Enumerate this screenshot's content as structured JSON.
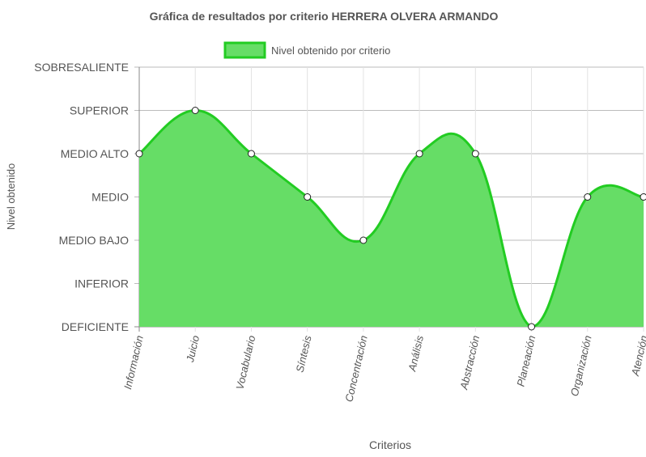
{
  "chart_data": {
    "type": "area",
    "title": "Gráfica de resultados por criterio HERRERA OLVERA ARMANDO",
    "xlabel": "Criterios",
    "ylabel": "Nivel obtenido",
    "legend": {
      "position": "top",
      "label": "Nivel obtenido por criterio"
    },
    "grid": true,
    "y_levels": [
      "DEFICIENTE",
      "INFERIOR",
      "MEDIO BAJO",
      "MEDIO",
      "MEDIO ALTO",
      "SUPERIOR",
      "SOBRESALIENTE"
    ],
    "ylim": [
      0,
      6
    ],
    "categories": [
      "Información",
      "Juicio",
      "Vocabulario",
      "Síntesis",
      "Concentración",
      "Análisis",
      "Abstracción",
      "Planeación",
      "Organización",
      "Atención"
    ],
    "series": [
      {
        "name": "Nivel obtenido por criterio",
        "values": [
          4,
          5,
          4,
          3,
          2,
          4,
          4,
          0,
          3,
          3
        ],
        "color": "#22cc22",
        "fill": "#66dd66"
      }
    ]
  }
}
